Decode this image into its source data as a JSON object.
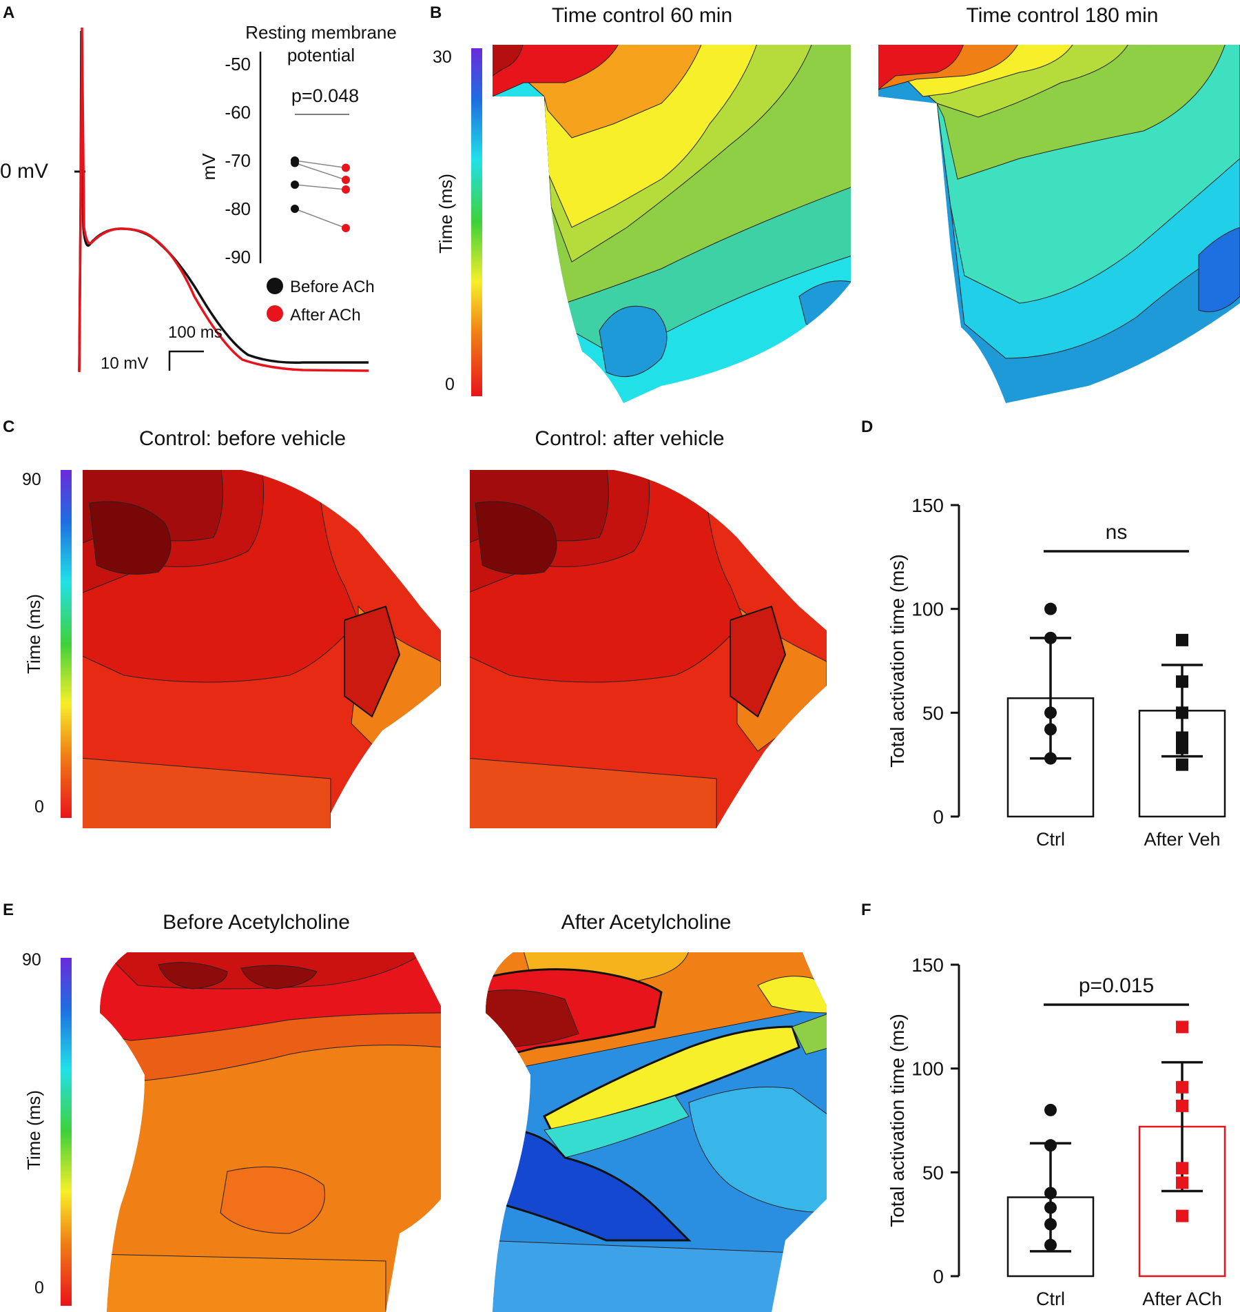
{
  "panel_letters": [
    "A",
    "B",
    "C",
    "D",
    "E",
    "F"
  ],
  "panelA": {
    "zero_label": "0 mV",
    "scale_time": "100 ms",
    "scale_volt": "10 mV",
    "inset": {
      "title_line1": "Resting membrane",
      "title_line2": "potential",
      "ylabel": "mV",
      "pvalue": "p=0.048",
      "ticks": [
        "-50",
        "-60",
        "-70",
        "-80",
        "-90"
      ]
    },
    "legend": [
      "Before ACh",
      "After ACh"
    ]
  },
  "panelB": {
    "titles": [
      "Time control 60 min",
      "Time control 180 min"
    ],
    "colorbar": {
      "max": "30",
      "min": "0",
      "label": "Time (ms)"
    }
  },
  "panelC": {
    "titles": [
      "Control: before vehicle",
      "Control: after vehicle"
    ],
    "colorbar": {
      "max": "90",
      "min": "0",
      "label": "Time (ms)"
    }
  },
  "panelE": {
    "titles": [
      "Before Acetylcholine",
      "After Acetylcholine"
    ],
    "colorbar": {
      "max": "90",
      "min": "0",
      "label": "Time (ms)"
    }
  },
  "colors": {
    "black": "#111111",
    "red": "#e8141b",
    "maroon": "#9c0e0b",
    "orange": "#f07f16",
    "yellow": "#f6ef2a",
    "green": "#8ecf45",
    "cyan": "#22e0e8",
    "blue": "#1e6fe0"
  },
  "chart_data": [
    {
      "id": "rmp",
      "type": "scatter",
      "title": "Resting membrane potential",
      "ylabel": "mV",
      "ylim": [
        -90,
        -50
      ],
      "yticks": [
        -50,
        -60,
        -70,
        -80,
        -90
      ],
      "annotation": "p=0.048",
      "series": [
        {
          "name": "Before ACh",
          "color": "#111111",
          "values": [
            -70,
            -70.5,
            -75,
            -80
          ]
        },
        {
          "name": "After ACh",
          "color": "#e8141b",
          "values": [
            -71.5,
            -74,
            -76,
            -84
          ]
        }
      ]
    },
    {
      "id": "d",
      "type": "bar",
      "categories": [
        "Ctrl",
        "After  Veh"
      ],
      "ylabel": "Total activation time (ms)",
      "ylim": [
        0,
        150
      ],
      "yticks": [
        0,
        50,
        100,
        150
      ],
      "annotation": "ns",
      "means": [
        57,
        51
      ],
      "sd": [
        29,
        22
      ],
      "bar_colors": [
        "#111111",
        "#111111"
      ],
      "markers": [
        "circle",
        "square"
      ],
      "points": [
        [
          100,
          86,
          50,
          42,
          28
        ],
        [
          85,
          65,
          50,
          38,
          33,
          25
        ]
      ]
    },
    {
      "id": "f",
      "type": "bar",
      "categories": [
        "Ctrl",
        "After ACh"
      ],
      "ylabel": "Total activation time (ms)",
      "ylim": [
        0,
        150
      ],
      "yticks": [
        0,
        50,
        100,
        150
      ],
      "annotation": "p=0.015",
      "means": [
        38,
        72
      ],
      "sd": [
        26,
        31
      ],
      "bar_colors": [
        "#111111",
        "#e8141b"
      ],
      "markers": [
        "circle",
        "square"
      ],
      "points": [
        [
          80,
          63,
          40,
          33,
          25,
          15
        ],
        [
          120,
          91,
          82,
          52,
          45,
          29
        ]
      ]
    }
  ]
}
